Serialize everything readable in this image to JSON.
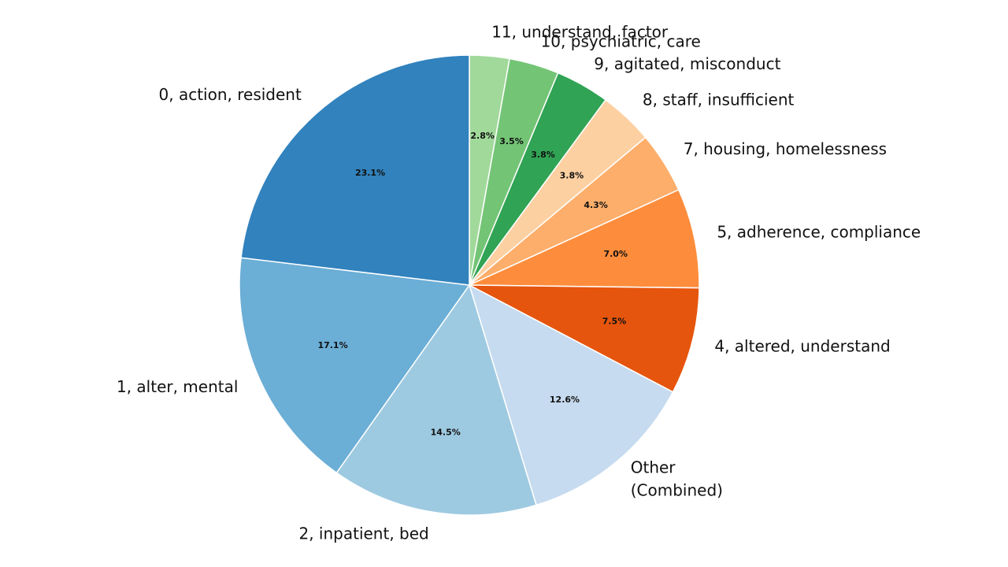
{
  "chart_data": {
    "type": "pie",
    "start_angle_deg": 90,
    "direction": "clockwise",
    "slices": [
      {
        "label": "11, understand, factor",
        "value": 2.8,
        "pct_label": "2.8%",
        "color": "#a1d99b"
      },
      {
        "label": "10, psychiatric, care",
        "value": 3.5,
        "pct_label": "3.5%",
        "color": "#74c476"
      },
      {
        "label": "9, agitated, misconduct",
        "value": 3.8,
        "pct_label": "3.8%",
        "color": "#31a354"
      },
      {
        "label": "8, staff, insufficient",
        "value": 3.8,
        "pct_label": "3.8%",
        "color": "#fdd0a2"
      },
      {
        "label": "7, housing, homelessness",
        "value": 4.3,
        "pct_label": "4.3%",
        "color": "#fdae6b"
      },
      {
        "label": "5, adherence, compliance",
        "value": 7.0,
        "pct_label": "7.0%",
        "color": "#fd8d3c"
      },
      {
        "label": "4, altered, understand",
        "value": 7.5,
        "pct_label": "7.5%",
        "color": "#e6550d"
      },
      {
        "label": "Other (Combined)",
        "value": 12.6,
        "pct_label": "12.6%",
        "color": "#c6dbef"
      },
      {
        "label": "2, inpatient, bed",
        "value": 14.5,
        "pct_label": "14.5%",
        "color": "#9ecae1"
      },
      {
        "label": "1, alter, mental",
        "value": 17.1,
        "pct_label": "17.1%",
        "color": "#6baed6"
      },
      {
        "label": "0, action, resident",
        "value": 23.1,
        "pct_label": "23.1%",
        "color": "#3182bd"
      }
    ]
  }
}
